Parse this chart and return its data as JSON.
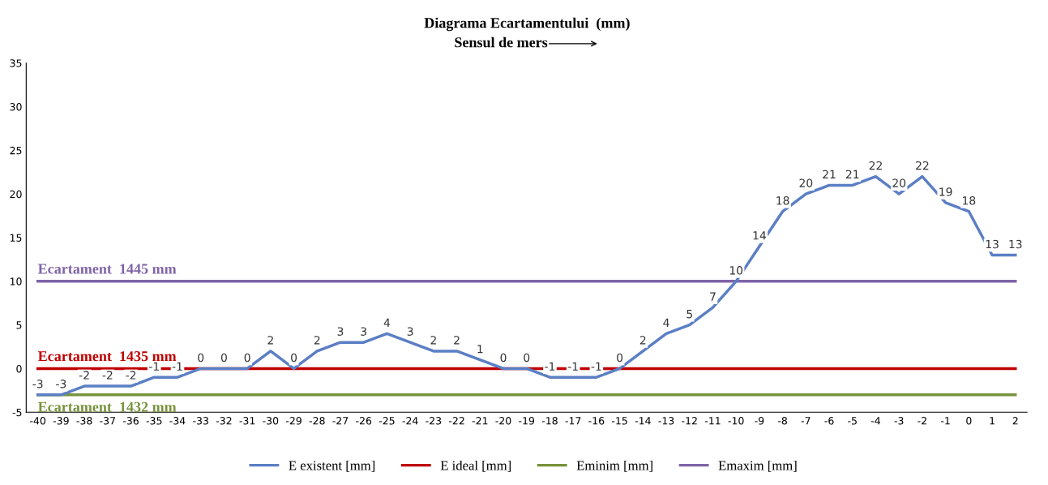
{
  "chart_data": {
    "type": "line",
    "title": "Diagrama Ecartamentului  (mm)",
    "subtitle": "Sensul de mers",
    "categories": [
      "-40",
      "-39",
      "-38",
      "-37",
      "-36",
      "-35",
      "-34",
      "-33",
      "-32",
      "-31",
      "-30",
      "-29",
      "-28",
      "-27",
      "-26",
      "-25",
      "-24",
      "-23",
      "-22",
      "-21",
      "-20",
      "-19",
      "-18",
      "-17",
      "-16",
      "-15",
      "-14",
      "-13",
      "-12",
      "-11",
      "-10",
      "-9",
      "-8",
      "-7",
      "-6",
      "-5",
      "-4",
      "-3",
      "-2",
      "-1",
      "0",
      "1",
      "2"
    ],
    "series": [
      {
        "name": "E existent [mm]",
        "color": "#5b7fc4",
        "data_labels": true,
        "values": [
          -3,
          -3,
          -2,
          -2,
          -2,
          -1,
          -1,
          0,
          0,
          0,
          2,
          0,
          2,
          3,
          3,
          4,
          3,
          2,
          2,
          1,
          0,
          0,
          -1,
          -1,
          -1,
          0,
          2,
          4,
          5,
          7,
          10,
          14,
          18,
          20,
          21,
          21,
          22,
          20,
          22,
          19,
          18,
          13,
          13
        ]
      },
      {
        "name": "E ideal [mm]",
        "color": "#c00000",
        "values": [
          0,
          0,
          0,
          0,
          0,
          0,
          0,
          0,
          0,
          0,
          0,
          0,
          0,
          0,
          0,
          0,
          0,
          0,
          0,
          0,
          0,
          0,
          0,
          0,
          0,
          0,
          0,
          0,
          0,
          0,
          0,
          0,
          0,
          0,
          0,
          0,
          0,
          0,
          0,
          0,
          0,
          0,
          0
        ]
      },
      {
        "name": "Eminim [mm]",
        "color": "#77933c",
        "values": [
          -3,
          -3,
          -3,
          -3,
          -3,
          -3,
          -3,
          -3,
          -3,
          -3,
          -3,
          -3,
          -3,
          -3,
          -3,
          -3,
          -3,
          -3,
          -3,
          -3,
          -3,
          -3,
          -3,
          -3,
          -3,
          -3,
          -3,
          -3,
          -3,
          -3,
          -3,
          -3,
          -3,
          -3,
          -3,
          -3,
          -3,
          -3,
          -3,
          -3,
          -3,
          -3,
          -3
        ]
      },
      {
        "name": "Emaxim [mm]",
        "color": "#7f64a8",
        "values": [
          10,
          10,
          10,
          10,
          10,
          10,
          10,
          10,
          10,
          10,
          10,
          10,
          10,
          10,
          10,
          10,
          10,
          10,
          10,
          10,
          10,
          10,
          10,
          10,
          10,
          10,
          10,
          10,
          10,
          10,
          10,
          10,
          10,
          10,
          10,
          10,
          10,
          10,
          10,
          10,
          10,
          10,
          10
        ]
      }
    ],
    "ylim": [
      -5,
      35
    ],
    "yticks": [
      -5,
      0,
      5,
      10,
      15,
      20,
      25,
      30,
      35
    ],
    "legend": "bottom",
    "marker": "none",
    "line_style": "solid",
    "annotations": [
      {
        "text": "Ecartament  1445 mm",
        "x": "-40",
        "y": 10
      },
      {
        "text": "Ecartament  1435 mm",
        "x": "-40",
        "y": 0
      },
      {
        "text": "Ecartament  1432 mm",
        "x": "-40",
        "y": -3
      }
    ]
  }
}
